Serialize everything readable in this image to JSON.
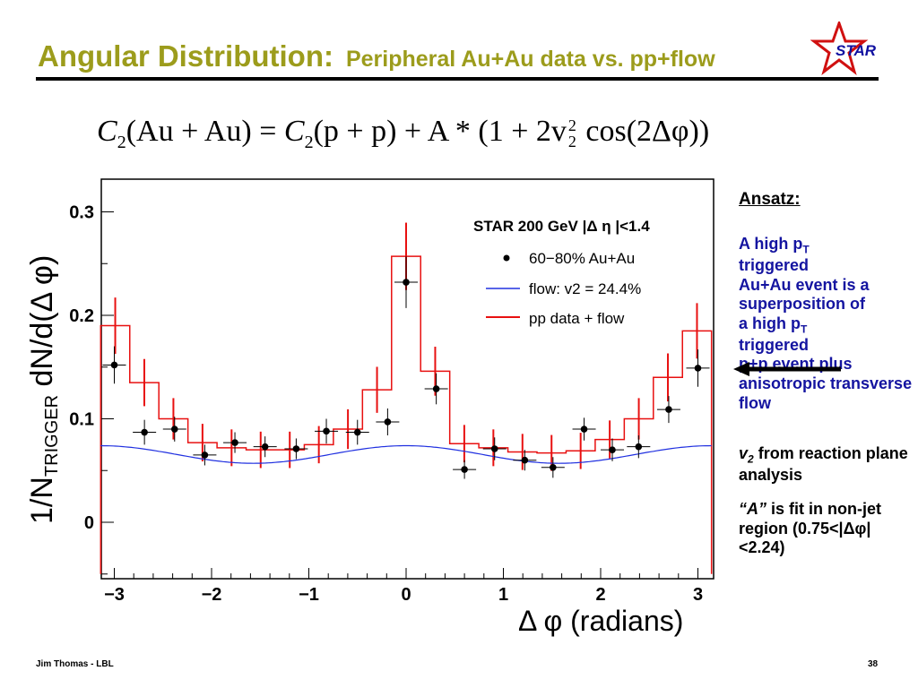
{
  "slide": {
    "title_main": "Angular Distribution:",
    "title_sub": "Peripheral Au+Au data vs. pp+flow",
    "logo_text": "STAR",
    "formula": {
      "c_lhs": "C",
      "sub_lhs": "2",
      "lhs_arg": "(Au + Au) = ",
      "c_rhs": "C",
      "sub_rhs": "2",
      "rhs_arg": "(p + p) + A * (1 + 2v",
      "v_sup": "2",
      "v_sub": "2",
      "tail": " cos(2Δφ))"
    },
    "ansatz": {
      "heading": "Ansatz:",
      "l1a": "A high p",
      "l1sub": "T",
      "l2": "triggered",
      "l3": "Au+Au event is  a superposition of",
      "l4a": "a high p",
      "l4sub": "T",
      "l5": "triggered",
      "l6": "p+p event plus anisotropic transverse flow"
    },
    "v2_note": {
      "v": "v",
      "sub": "2",
      "rest": " from reaction plane analysis"
    },
    "fit_note": {
      "a": "“A”",
      "rest": " is fit in    non-jet region (0.75<|Δφ|<2.24)"
    },
    "footer_left": "Jim Thomas - LBL",
    "footer_right": "38",
    "colors": {
      "title": "#9c9c1c",
      "ansatz_text": "#1414a0",
      "pp_flow": "#e81010",
      "flow": "#2030e0",
      "logo": "#d01010"
    }
  },
  "chart_data": {
    "type": "line",
    "xlabel": "Δ φ (radians)",
    "ylabel_prefix": "1/N",
    "ylabel_sub": "TRIGGER",
    "ylabel_rest": " dN/d(Δ φ)",
    "xlim": [
      -3.14,
      3.14
    ],
    "ylim": [
      -0.05,
      0.33
    ],
    "x_ticks": [
      -3,
      -2,
      -1,
      0,
      1,
      2,
      3
    ],
    "y_ticks": [
      0,
      0.1,
      0.2,
      0.3
    ],
    "x_tick_labels": [
      "−3",
      "−2",
      "−1",
      "0",
      "1",
      "2",
      "3"
    ],
    "y_tick_labels": [
      "0",
      "0.1",
      "0.2",
      "0.3"
    ],
    "legend": {
      "header": "STAR 200 GeV |Δ η |<1.4",
      "placement": "top-right",
      "entries": [
        "60−80% Au+Au",
        "flow: v2 = 24.4%",
        "pp data + flow"
      ]
    },
    "series": [
      {
        "name": "60−80% Au+Au",
        "style": "points",
        "x": [
          -3.0,
          -2.69,
          -2.38,
          -2.07,
          -1.76,
          -1.45,
          -1.13,
          -0.82,
          -0.5,
          -0.19,
          0.0,
          0.31,
          0.6,
          0.91,
          1.22,
          1.51,
          1.83,
          2.12,
          2.39,
          2.7,
          3.0
        ],
        "y": [
          0.152,
          0.087,
          0.09,
          0.065,
          0.077,
          0.073,
          0.071,
          0.088,
          0.087,
          0.097,
          0.232,
          0.129,
          0.051,
          0.071,
          0.06,
          0.053,
          0.09,
          0.07,
          0.073,
          0.109,
          0.149
        ],
        "yerr": [
          0.018,
          0.012,
          0.012,
          0.01,
          0.01,
          0.01,
          0.01,
          0.012,
          0.012,
          0.013,
          0.025,
          0.015,
          0.009,
          0.011,
          0.01,
          0.01,
          0.011,
          0.011,
          0.011,
          0.013,
          0.018
        ]
      },
      {
        "name": "pp data + flow",
        "style": "histogram",
        "x": [
          -3.14,
          -2.83,
          -2.51,
          -2.2,
          -1.88,
          -1.57,
          -1.26,
          -0.94,
          -0.63,
          -0.31,
          0.0,
          0.31,
          0.63,
          0.94,
          1.26,
          1.57,
          1.88,
          2.2,
          2.51,
          2.83,
          3.14
        ],
        "y": [
          0.19,
          0.135,
          0.1,
          0.077,
          0.072,
          0.07,
          0.07,
          0.075,
          0.09,
          0.128,
          0.257,
          0.146,
          0.076,
          0.072,
          0.068,
          0.067,
          0.069,
          0.08,
          0.1,
          0.14,
          0.185
        ]
      },
      {
        "name": "flow: v2 = 24.4%",
        "style": "curve",
        "mean": 0.0655,
        "amplitude": 0.0085
      }
    ]
  }
}
